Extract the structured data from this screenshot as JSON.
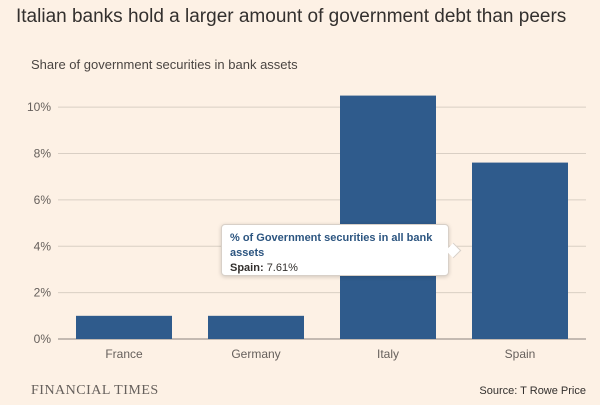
{
  "title": "Italian banks hold a larger amount of government debt than peers",
  "subtitle": "Share of government securities in bank assets",
  "chart_data": {
    "type": "bar",
    "categories": [
      "France",
      "Germany",
      "Italy",
      "Spain"
    ],
    "values": [
      1.0,
      1.0,
      10.5,
      7.61
    ],
    "ylim": [
      0,
      11
    ],
    "yticks": [
      "0%",
      "2%",
      "4%",
      "6%",
      "8%",
      "10%"
    ],
    "ytick_values": [
      0,
      2,
      4,
      6,
      8,
      10
    ],
    "grid": true,
    "bar_color": "#2f5b8c"
  },
  "tooltip": {
    "title": "% of Government securities in all bank assets",
    "category": "Spain:",
    "value": "7.61%"
  },
  "footer": {
    "brand": "FINANCIAL TIMES",
    "source": "Source: T Rowe Price"
  }
}
